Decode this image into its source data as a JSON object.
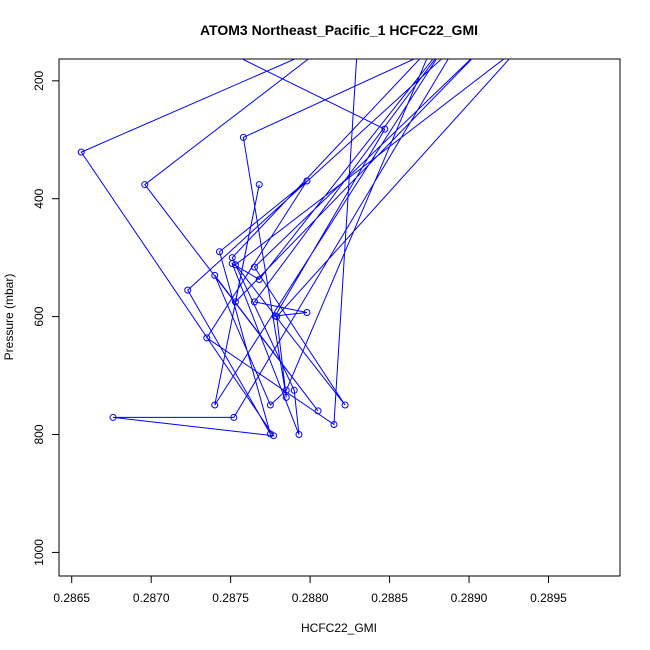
{
  "chart_data": {
    "type": "line",
    "title": "ATOM3 Northeast_Pacific_1 HCFC22_GMI",
    "xlabel": "HCFC22_GMI",
    "ylabel": "Pressure (mbar)",
    "xlim": [
      0.28642,
      0.28995
    ],
    "ylim": [
      1040,
      163
    ],
    "y_reversed": true,
    "x_ticks": [
      "0.2865",
      "0.2870",
      "0.2875",
      "0.2880",
      "0.2885",
      "0.2890",
      "0.2895"
    ],
    "x_tick_values": [
      0.2865,
      0.287,
      0.2875,
      0.288,
      0.2885,
      0.289,
      0.2895
    ],
    "y_ticks": [
      "200",
      "400",
      "600",
      "800",
      "1000"
    ],
    "y_tick_values": [
      200,
      400,
      600,
      800,
      1000
    ],
    "series_color": "#0000ff",
    "marker": "open-circle",
    "grid": false,
    "legend": "none",
    "series": [
      {
        "x": [
          0.2881,
          0.28656,
          0.28777,
          0.28676,
          0.28752,
          0.28892,
          0.28723,
          0.28775,
          0.28743,
          0.28798,
          0.28735,
          0.28815,
          0.2883,
          0.2881,
          0.28696,
          0.28805,
          0.2874,
          0.28775,
          0.28785,
          0.28877,
          0.28751,
          0.2879,
          0.28793,
          0.28751,
          0.28768,
          0.28884,
          0.28758,
          0.28785,
          0.28779,
          0.28933,
          0.28753,
          0.28822,
          0.28765,
          0.2891,
          0.28753,
          0.28768,
          0.2874,
          0.28885,
          0.28765,
          0.28798,
          0.28778,
          0.28847,
          0.2874
        ],
        "y": [
          140,
          321,
          802,
          771,
          771,
          140,
          555,
          799,
          490,
          370,
          636,
          783,
          130,
          140,
          376,
          760,
          530,
          750,
          725,
          140,
          500,
          725,
          800,
          510,
          537,
          140,
          296,
          737,
          600,
          140,
          512,
          750,
          516,
          140,
          575,
          376,
          750,
          140,
          575,
          593,
          599,
          282,
          140
        ]
      }
    ]
  }
}
